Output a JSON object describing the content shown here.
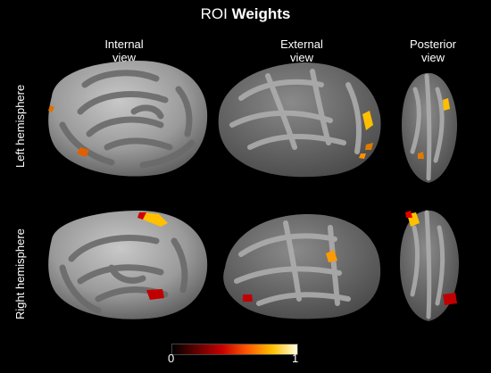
{
  "title": {
    "prefix": "ROI",
    "bold": "Weights"
  },
  "columns": [
    {
      "line1": "Internal",
      "line2": "view"
    },
    {
      "line1": "External",
      "line2": "view"
    },
    {
      "line1": "Posterior",
      "line2": "view"
    }
  ],
  "rows": [
    "Left hemisphere",
    "Right hemisphere"
  ],
  "colorbar": {
    "min_label": "0",
    "max_label": "1",
    "colormap": [
      "#000000",
      "#c80000",
      "#ff5a00",
      "#ffc000",
      "#ffffe0"
    ]
  },
  "colors": {
    "cortex_dark": "#6a6a6a",
    "cortex_light": "#a8a8a8",
    "background": "#000000"
  }
}
